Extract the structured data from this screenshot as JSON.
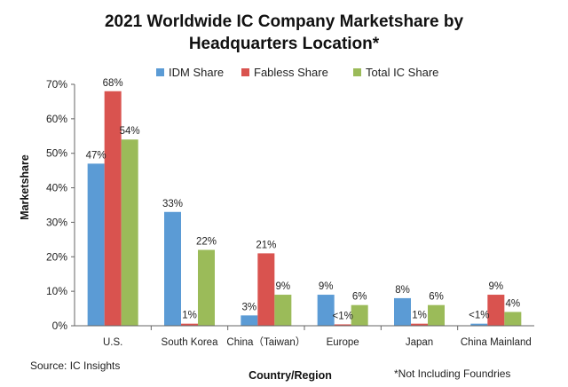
{
  "chart_data": {
    "type": "bar",
    "title_line1": "2021 Worldwide IC Company Marketshare by",
    "title_line2": "Headquarters Location*",
    "xlabel": "Country/Region",
    "ylabel": "Marketshare",
    "ylim": [
      0,
      70
    ],
    "yticks": [
      "0%",
      "10%",
      "20%",
      "30%",
      "40%",
      "50%",
      "60%",
      "70%"
    ],
    "categories": [
      "U.S.",
      "South Korea",
      "China（Taiwan）",
      "Europe",
      "Japan",
      "China Mainland"
    ],
    "series": [
      {
        "name": "IDM Share",
        "color": "#5b9bd5",
        "values": [
          47,
          33,
          3,
          9,
          8,
          0.6
        ],
        "labels": [
          "47%",
          "33%",
          "3%",
          "9%",
          "8%",
          "<1%"
        ]
      },
      {
        "name": "Fabless Share",
        "color": "#d9534f",
        "values": [
          68,
          0.6,
          21,
          0.4,
          0.6,
          9
        ],
        "labels": [
          "68%",
          "1%",
          "21%",
          "<1%",
          "1%",
          "9%"
        ]
      },
      {
        "name": "Total IC Share",
        "color": "#9bbb59",
        "values": [
          54,
          22,
          9,
          6,
          6,
          4
        ],
        "labels": [
          "54%",
          "22%",
          "9%",
          "6%",
          "6%",
          "4%"
        ]
      }
    ],
    "legend_position": "top",
    "grid": false
  },
  "footer": {
    "source": "Source: IC Insights",
    "note": "*Not Including Foundries"
  }
}
